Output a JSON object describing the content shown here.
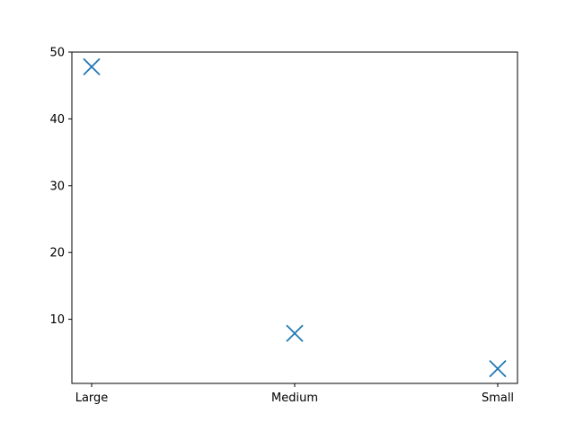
{
  "chart_data": {
    "type": "scatter",
    "title": "",
    "xlabel": "",
    "ylabel": "",
    "categories": [
      "Large",
      "Medium",
      "Small"
    ],
    "series": [
      {
        "marker": "x",
        "color": "#1f77b4",
        "values": [
          47.8,
          7.9,
          2.6
        ]
      }
    ],
    "ylim": [
      0.4,
      50
    ],
    "yticks": [
      10,
      20,
      30,
      40,
      50
    ],
    "grid": false,
    "legend": "none"
  }
}
